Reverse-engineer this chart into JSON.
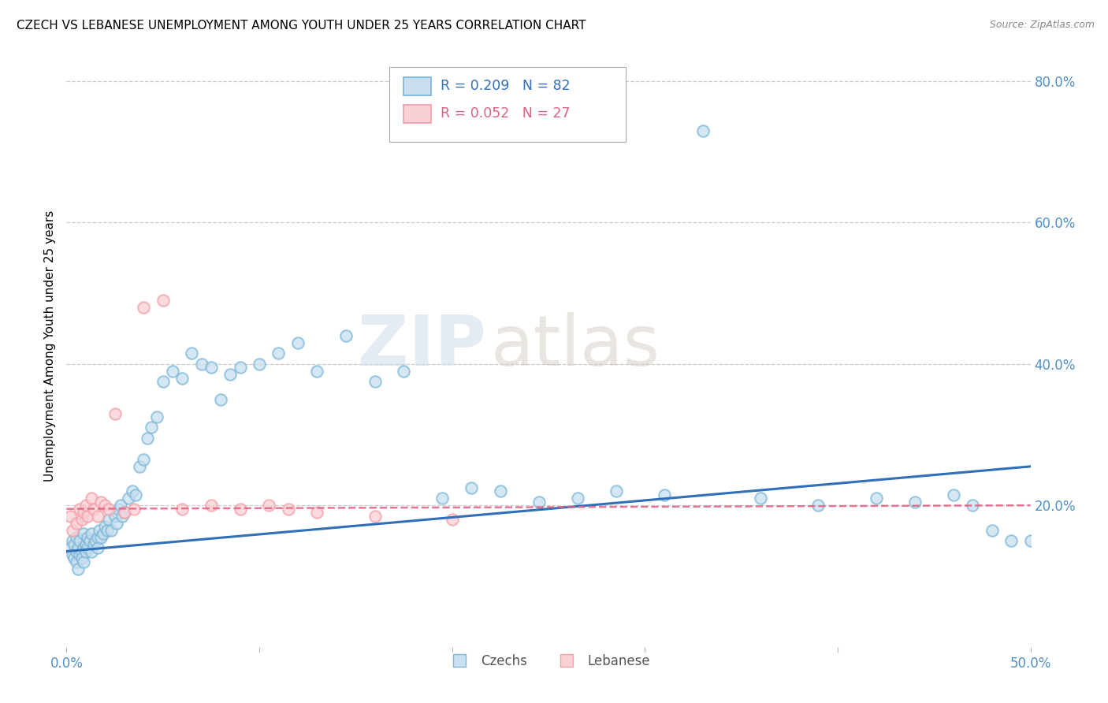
{
  "title": "CZECH VS LEBANESE UNEMPLOYMENT AMONG YOUTH UNDER 25 YEARS CORRELATION CHART",
  "source": "Source: ZipAtlas.com",
  "ylabel": "Unemployment Among Youth under 25 years",
  "xlim": [
    0.0,
    0.5
  ],
  "ylim": [
    0.0,
    0.85
  ],
  "ytick_vals": [
    0.2,
    0.4,
    0.6,
    0.8
  ],
  "ytick_labels": [
    "20.0%",
    "40.0%",
    "60.0%",
    "80.0%"
  ],
  "xtick_vals": [
    0.0,
    0.1,
    0.2,
    0.3,
    0.4,
    0.5
  ],
  "xtick_labels": [
    "0.0%",
    "",
    "",
    "",
    "",
    "50.0%"
  ],
  "watermark": "ZIPatlas",
  "czech_color": "#7db8d8",
  "leb_color": "#f4a0aa",
  "czech_line_color": "#3070b8",
  "leb_line_color": "#e06080",
  "czech_line": {
    "x0": 0.0,
    "y0": 0.135,
    "x1": 0.5,
    "y1": 0.255
  },
  "leb_line": {
    "x0": 0.0,
    "y0": 0.195,
    "x1": 0.5,
    "y1": 0.2
  },
  "czech_x": [
    0.002,
    0.003,
    0.003,
    0.004,
    0.004,
    0.005,
    0.005,
    0.005,
    0.006,
    0.006,
    0.007,
    0.007,
    0.008,
    0.008,
    0.009,
    0.009,
    0.009,
    0.01,
    0.01,
    0.011,
    0.011,
    0.012,
    0.013,
    0.013,
    0.014,
    0.015,
    0.016,
    0.016,
    0.017,
    0.018,
    0.019,
    0.02,
    0.021,
    0.022,
    0.023,
    0.025,
    0.026,
    0.027,
    0.028,
    0.029,
    0.03,
    0.032,
    0.034,
    0.036,
    0.038,
    0.04,
    0.042,
    0.044,
    0.047,
    0.05,
    0.055,
    0.06,
    0.065,
    0.07,
    0.075,
    0.08,
    0.085,
    0.09,
    0.1,
    0.11,
    0.12,
    0.13,
    0.145,
    0.16,
    0.175,
    0.195,
    0.21,
    0.225,
    0.245,
    0.265,
    0.285,
    0.31,
    0.33,
    0.36,
    0.39,
    0.42,
    0.44,
    0.46,
    0.47,
    0.48,
    0.49,
    0.5
  ],
  "czech_y": [
    0.14,
    0.13,
    0.15,
    0.125,
    0.145,
    0.12,
    0.135,
    0.155,
    0.11,
    0.14,
    0.13,
    0.15,
    0.135,
    0.125,
    0.14,
    0.12,
    0.16,
    0.145,
    0.135,
    0.155,
    0.14,
    0.15,
    0.135,
    0.16,
    0.145,
    0.15,
    0.155,
    0.14,
    0.165,
    0.155,
    0.16,
    0.17,
    0.165,
    0.18,
    0.165,
    0.185,
    0.175,
    0.195,
    0.2,
    0.185,
    0.19,
    0.21,
    0.22,
    0.215,
    0.255,
    0.265,
    0.295,
    0.31,
    0.325,
    0.375,
    0.39,
    0.38,
    0.415,
    0.4,
    0.395,
    0.35,
    0.385,
    0.395,
    0.4,
    0.415,
    0.43,
    0.39,
    0.44,
    0.375,
    0.39,
    0.21,
    0.225,
    0.22,
    0.205,
    0.21,
    0.22,
    0.215,
    0.73,
    0.21,
    0.2,
    0.21,
    0.205,
    0.215,
    0.2,
    0.165,
    0.15,
    0.15
  ],
  "leb_x": [
    0.002,
    0.003,
    0.005,
    0.007,
    0.008,
    0.009,
    0.01,
    0.011,
    0.013,
    0.014,
    0.016,
    0.018,
    0.02,
    0.022,
    0.025,
    0.03,
    0.035,
    0.04,
    0.05,
    0.06,
    0.075,
    0.09,
    0.105,
    0.115,
    0.13,
    0.16,
    0.2
  ],
  "leb_y": [
    0.185,
    0.165,
    0.175,
    0.195,
    0.18,
    0.19,
    0.2,
    0.185,
    0.21,
    0.195,
    0.185,
    0.205,
    0.2,
    0.195,
    0.33,
    0.19,
    0.195,
    0.48,
    0.49,
    0.195,
    0.2,
    0.195,
    0.2,
    0.195,
    0.19,
    0.185,
    0.18
  ]
}
